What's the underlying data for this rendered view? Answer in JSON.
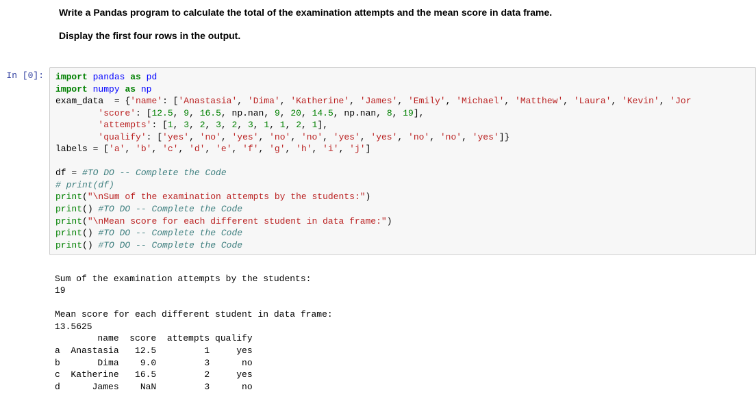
{
  "question": {
    "line1": "Write a Pandas program to calculate the total of the examination attempts and the mean score in data frame.",
    "line2": "Display the first four rows in the output."
  },
  "prompt": "In [0]:",
  "code": {
    "l1_import": "import",
    "l1_module": "pandas",
    "l1_as": "as",
    "l1_alias": "pd",
    "l2_import": "import",
    "l2_module": "numpy",
    "l2_as": "as",
    "l2_alias": "np",
    "l3_var": "exam_data  ",
    "l3_eq": "=",
    "l3_open": " {",
    "l3_k1": "'name'",
    "l3_sep1": ": [",
    "l3_v1": "'Anastasia'",
    "l3_c": ", ",
    "l3_v2": "'Dima'",
    "l3_v3": "'Katherine'",
    "l3_v4": "'James'",
    "l3_v5": "'Emily'",
    "l3_v6": "'Michael'",
    "l3_v7": "'Matthew'",
    "l3_v8": "'Laura'",
    "l3_v9": "'Kevin'",
    "l3_v10": "'Jor",
    "l4_pad": "        ",
    "l4_k": "'score'",
    "l4_sep": ": [",
    "l4_n1": "12.5",
    "l4_n2": "9",
    "l4_n3": "16.5",
    "l4_nan": "np.nan",
    "l4_n5": "9",
    "l4_n6": "20",
    "l4_n7": "14.5",
    "l4_n9": "8",
    "l4_n10": "19",
    "l4_close": "],",
    "l5_pad": "        ",
    "l5_k": "'attempts'",
    "l5_sep": ": [",
    "l5_n1": "1",
    "l5_n2": "3",
    "l5_n3": "2",
    "l5_n4": "3",
    "l5_n5": "2",
    "l5_n6": "3",
    "l5_n7": "1",
    "l5_n8": "1",
    "l5_n9": "2",
    "l5_n10": "1",
    "l5_close": "],",
    "l6_pad": "        ",
    "l6_k": "'qualify'",
    "l6_sep": ": [",
    "l6_v1": "'yes'",
    "l6_v2": "'no'",
    "l6_v3": "'yes'",
    "l6_v4": "'no'",
    "l6_v5": "'no'",
    "l6_v6": "'yes'",
    "l6_v7": "'yes'",
    "l6_v8": "'no'",
    "l6_v9": "'no'",
    "l6_v10": "'yes'",
    "l6_close": "]}",
    "l7_var": "labels ",
    "l7_eq": "=",
    "l7_open": " [",
    "l7_a": "'a'",
    "l7_b": "'b'",
    "l7_c2": "'c'",
    "l7_d": "'d'",
    "l7_e": "'e'",
    "l7_f": "'f'",
    "l7_g": "'g'",
    "l7_h": "'h'",
    "l7_i": "'i'",
    "l7_j": "'j'",
    "l7_close": "]",
    "l9_df": "df ",
    "l9_eq": "=",
    "l9_com": " #TO DO -- Complete the Code",
    "l10_com": "# print(df)",
    "l11_print": "print",
    "l11_open": "(",
    "l11_str": "\"\\nSum of the examination attempts by the students:\"",
    "l11_close": ")",
    "l12_print": "print",
    "l12_open": "()",
    "l12_com": " #TO DO -- Complete the Code",
    "l13_print": "print",
    "l13_open": "(",
    "l13_str": "\"\\nMean score for each different student in data frame:\"",
    "l13_close": ")",
    "l14_print": "print",
    "l14_open": "()",
    "l14_com": " #TO DO -- Complete the Code",
    "l15_print": "print",
    "l15_open": "()",
    "l15_com": " #TO DO -- Complete the Code"
  },
  "output": {
    "blank1": "",
    "line1": "Sum of the examination attempts by the students:",
    "line2": "19",
    "blank2": "",
    "line3": "Mean score for each different student in data frame:",
    "line4": "13.5625",
    "header": "        name  score  attempts qualify",
    "row_a": "a  Anastasia   12.5         1     yes",
    "row_b": "b       Dima    9.0         3      no",
    "row_c": "c  Katherine   16.5         2     yes",
    "row_d": "d      James    NaN         3      no"
  },
  "colors": {
    "keyword": "#008000",
    "string": "#BA2121",
    "comment": "#408080",
    "prompt": "#303F9F",
    "border": "#cfcfcf",
    "code_bg": "#f7f7f7"
  }
}
